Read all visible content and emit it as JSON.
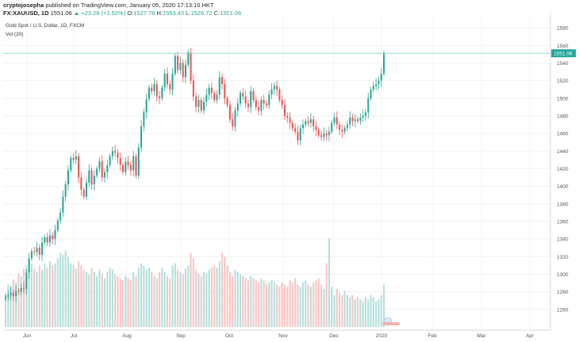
{
  "header": {
    "publisher": "cryptojosepha",
    "published_text": "published on TradingView.com, January 05, 2020 17:13:10 HKT",
    "symbol": "FX:XAUUSD, 1D",
    "last": "1551.06",
    "change": "▲ +23.28 (+1.52%)",
    "open_label": "O:",
    "open": "1527.78",
    "high_label": "H:",
    "high": "1553.43",
    "low_label": "L:",
    "low": "1526.72",
    "close_label": "C:",
    "close": "1551.06"
  },
  "chart_data": {
    "type": "candlestick",
    "title": "Gold Spot / U.S. Dollar, 1D, FXCM",
    "volume_label": "Vol (20)",
    "ylim": [
      1240,
      1590
    ],
    "y_ticks": [
      1260,
      1280,
      1300,
      1320,
      1340,
      1360,
      1380,
      1400,
      1420,
      1440,
      1460,
      1480,
      1500,
      1520,
      1540,
      1560,
      1580
    ],
    "x_ticks": [
      "Jun",
      "Jul",
      "Aug",
      "Sep",
      "Oct",
      "Nov",
      "Dec",
      "2020",
      "Feb",
      "Mar",
      "Apr"
    ],
    "last_price_label": "1551.06",
    "last_price": 1551.06,
    "colors": {
      "up": "#26a69a",
      "down": "#ef5350",
      "up_volume": "#b2dfdb",
      "down_volume": "#f8c4c2"
    },
    "closes": [
      1274,
      1276,
      1279,
      1275,
      1281,
      1280,
      1284,
      1283,
      1302,
      1318,
      1326,
      1325,
      1330,
      1322,
      1336,
      1342,
      1336,
      1344,
      1340,
      1350,
      1361,
      1370,
      1388,
      1402,
      1418,
      1432,
      1430,
      1434,
      1410,
      1396,
      1388,
      1404,
      1418,
      1402,
      1412,
      1420,
      1428,
      1410,
      1416,
      1424,
      1434,
      1440,
      1438,
      1432,
      1424,
      1416,
      1428,
      1424,
      1418,
      1434,
      1412,
      1444,
      1468,
      1484,
      1499,
      1512,
      1508,
      1516,
      1502,
      1500,
      1512,
      1528,
      1516,
      1510,
      1528,
      1548,
      1532,
      1540,
      1524,
      1538,
      1552,
      1520,
      1502,
      1490,
      1498,
      1486,
      1496,
      1504,
      1512,
      1506,
      1498,
      1504,
      1524,
      1516,
      1500,
      1492,
      1476,
      1468,
      1486,
      1494,
      1506,
      1502,
      1494,
      1490,
      1508,
      1498,
      1490,
      1486,
      1498,
      1494,
      1492,
      1504,
      1510,
      1514,
      1510,
      1498,
      1492,
      1480,
      1478,
      1472,
      1466,
      1462,
      1452,
      1466,
      1470,
      1474,
      1472,
      1476,
      1468,
      1464,
      1458,
      1456,
      1460,
      1458,
      1462,
      1472,
      1478,
      1470,
      1464,
      1462,
      1466,
      1470,
      1478,
      1474,
      1476,
      1474,
      1478,
      1480,
      1484,
      1500,
      1510,
      1514,
      1516,
      1520,
      1528,
      1551.06
    ],
    "volumes": [
      32,
      40,
      38,
      45,
      42,
      50,
      48,
      55,
      58,
      62,
      60,
      55,
      52,
      58,
      54,
      60,
      56,
      62,
      58,
      60,
      65,
      70,
      68,
      72,
      66,
      60,
      58,
      55,
      62,
      58,
      54,
      52,
      50,
      56,
      52,
      48,
      54,
      50,
      46,
      52,
      56,
      54,
      50,
      48,
      46,
      44,
      48,
      46,
      44,
      52,
      48,
      56,
      60,
      58,
      54,
      56,
      52,
      48,
      46,
      52,
      56,
      52,
      48,
      46,
      58,
      60,
      54,
      52,
      50,
      55,
      58,
      70,
      65,
      54,
      50,
      48,
      52,
      50,
      54,
      56,
      58,
      56,
      62,
      70,
      66,
      58,
      52,
      48,
      54,
      52,
      50,
      48,
      46,
      44,
      48,
      46,
      44,
      42,
      46,
      44,
      40,
      42,
      44,
      42,
      40,
      38,
      42,
      40,
      38,
      44,
      42,
      46,
      40,
      38,
      42,
      44,
      40,
      38,
      42,
      44,
      46,
      40,
      36,
      60,
      84,
      38,
      30,
      36,
      32,
      30,
      34,
      30,
      28,
      30,
      26,
      28,
      26,
      24,
      28,
      26,
      30,
      28,
      24,
      26,
      30,
      40
    ]
  }
}
